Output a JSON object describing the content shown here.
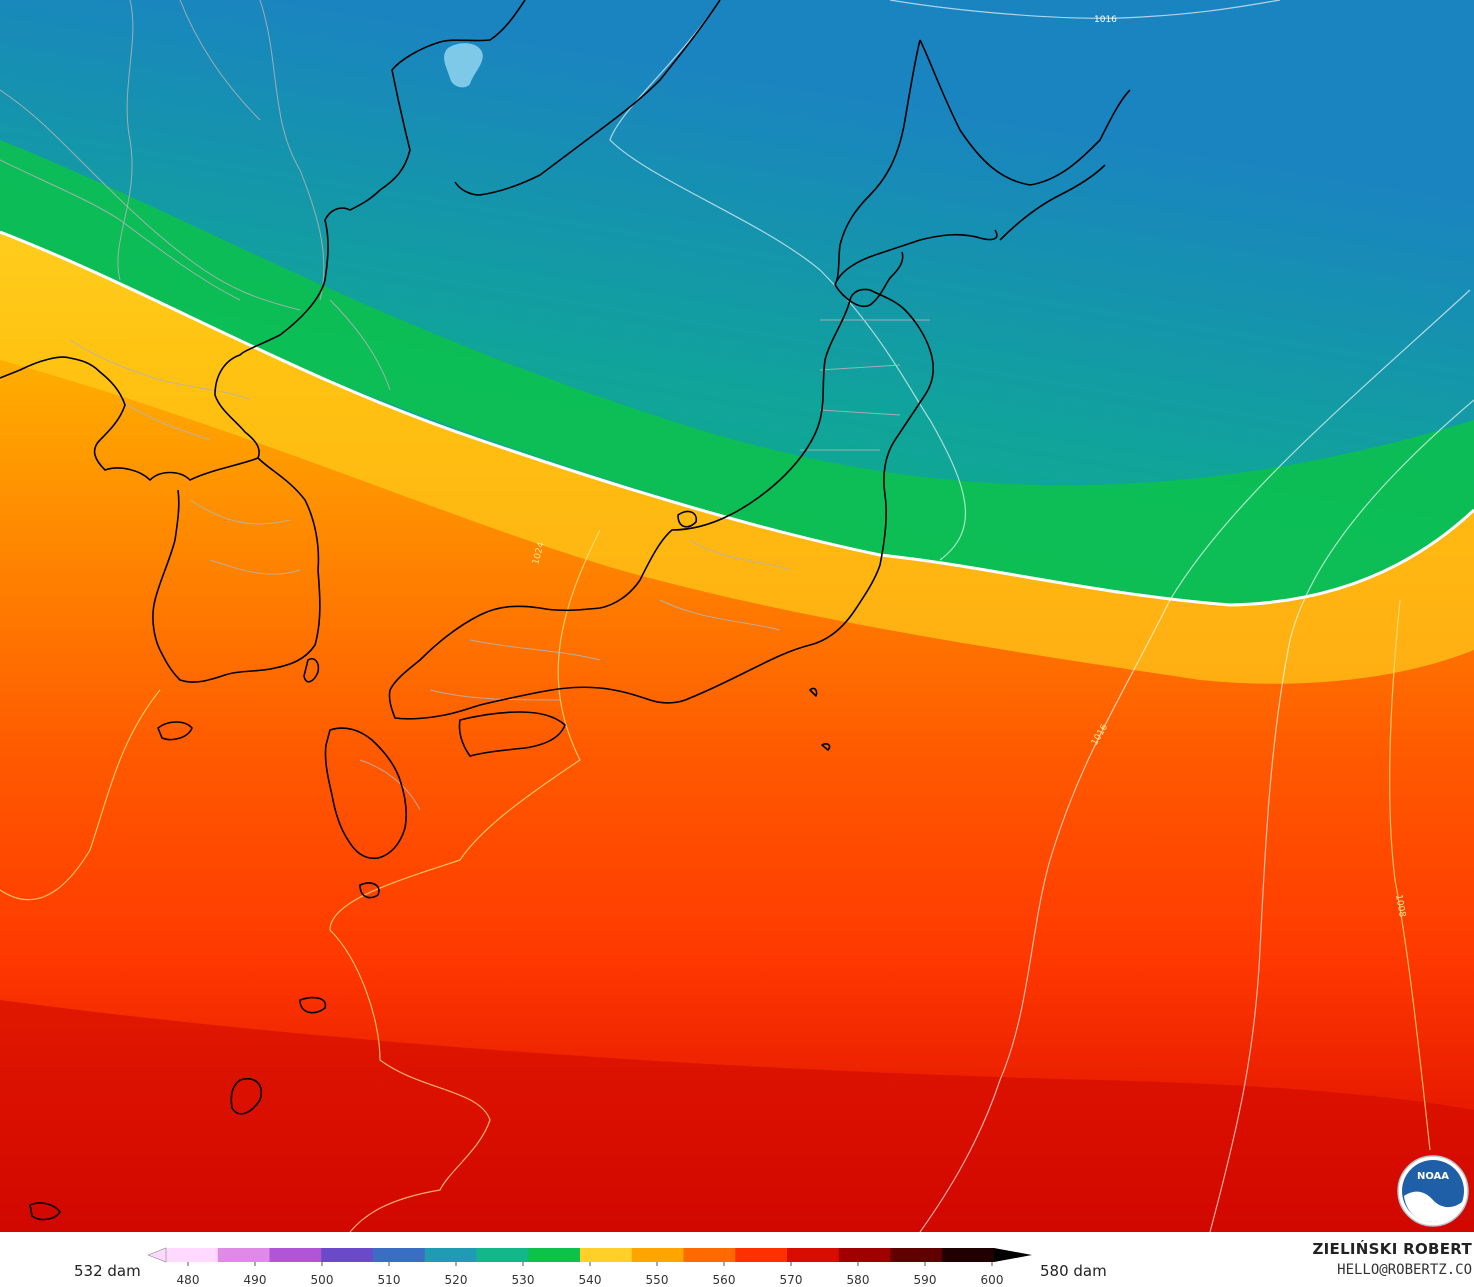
{
  "map": {
    "isobar_labels": [
      "1016",
      "1024",
      "1016",
      "1008"
    ],
    "colors": {
      "ocean_green": "#0cc24a",
      "teal": "#0ea68a",
      "blue": "#1a84c0",
      "yellow": "#ffd02a",
      "orange": "#ff8a00",
      "red_orange": "#ff4a00",
      "red": "#dc0c00",
      "coastline": "#000000",
      "border": "#a0a0a0",
      "isobar": "#ffffff"
    }
  },
  "colorbar": {
    "left_label": "532 dam",
    "right_label": "580 dam",
    "ticks": [
      "480",
      "490",
      "500",
      "510",
      "520",
      "530",
      "540",
      "550",
      "560",
      "570",
      "580",
      "590",
      "600"
    ],
    "stops": [
      "#ffd9ff",
      "#e08ae8",
      "#b055d8",
      "#6a4ac8",
      "#3a6ec4",
      "#1f9cb4",
      "#13b88a",
      "#0cc24a",
      "#ffd02a",
      "#ffa400",
      "#ff6a00",
      "#ff3000",
      "#d80c00",
      "#a00000",
      "#600000",
      "#200000"
    ]
  },
  "branding": {
    "author": "ZIELIŃSKI ROBERT",
    "email": "HELLO@ROBERTZ.CO",
    "logo_text": "NOAA",
    "logo_icon": "noaa-logo-icon"
  }
}
